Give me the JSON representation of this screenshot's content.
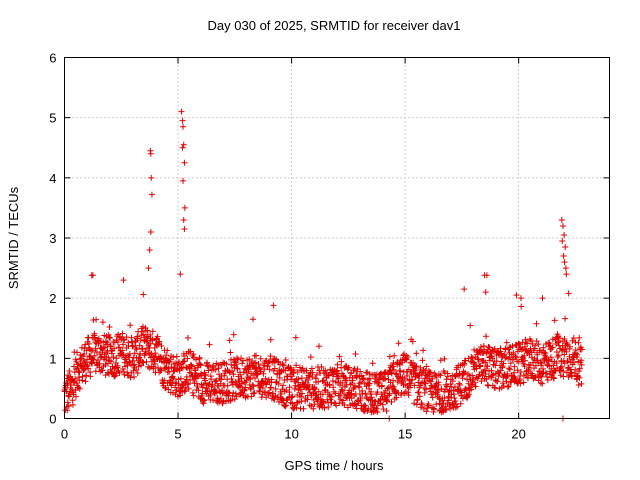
{
  "chart_data": {
    "type": "scatter",
    "title": "Day 030 of 2025, SRMTID for receiver dav1",
    "xlabel": "GPS time / hours",
    "ylabel": "SRMTID / TECUs",
    "xlim": [
      0,
      24
    ],
    "ylim": [
      0,
      6
    ],
    "xticks": [
      0,
      5,
      10,
      15,
      20
    ],
    "yticks": [
      0,
      1,
      2,
      3,
      4,
      5,
      6
    ],
    "grid": true,
    "marker": "plus",
    "color": "#e00000",
    "series": [
      {
        "name": "SRMTID",
        "profile_hours": [
          0,
          0.3,
          0.6,
          1.0,
          1.5,
          2.0,
          2.5,
          3.0,
          3.5,
          4.0,
          4.5,
          5.0,
          5.5,
          6.0,
          7.0,
          8.0,
          9.0,
          10.0,
          11.0,
          12.0,
          13.0,
          13.5,
          14.0,
          14.5,
          15.0,
          15.5,
          16.0,
          16.5,
          17.0,
          17.5,
          18.0,
          18.5,
          19.0,
          19.5,
          20.0,
          20.5,
          21.0,
          21.5,
          22.0,
          22.5,
          22.8
        ],
        "profile_level": [
          0.35,
          0.5,
          0.8,
          1.0,
          1.1,
          1.0,
          1.1,
          1.0,
          1.2,
          1.1,
          0.8,
          0.7,
          0.8,
          0.6,
          0.6,
          0.7,
          0.7,
          0.5,
          0.5,
          0.55,
          0.5,
          0.4,
          0.4,
          0.6,
          0.75,
          0.55,
          0.45,
          0.4,
          0.45,
          0.6,
          0.8,
          0.9,
          0.8,
          0.85,
          0.9,
          1.0,
          0.9,
          1.0,
          1.05,
          1.0,
          0.8
        ],
        "noise_amplitude": 0.35,
        "sample_step_hours": 0.012,
        "bursts": [
          {
            "x": 1.2,
            "y": 2.38
          },
          {
            "x": 1.25,
            "y": 2.38
          },
          {
            "x": 2.6,
            "y": 2.3
          },
          {
            "x": 3.78,
            "y": 4.45
          },
          {
            "x": 3.8,
            "y": 4.4
          },
          {
            "x": 3.82,
            "y": 4.0
          },
          {
            "x": 3.85,
            "y": 3.72
          },
          {
            "x": 3.8,
            "y": 3.1
          },
          {
            "x": 3.75,
            "y": 2.8
          },
          {
            "x": 3.7,
            "y": 2.5
          },
          {
            "x": 5.15,
            "y": 5.1
          },
          {
            "x": 5.2,
            "y": 4.95
          },
          {
            "x": 5.22,
            "y": 4.85
          },
          {
            "x": 5.25,
            "y": 4.55
          },
          {
            "x": 5.2,
            "y": 4.5
          },
          {
            "x": 5.28,
            "y": 4.25
          },
          {
            "x": 5.22,
            "y": 3.95
          },
          {
            "x": 5.3,
            "y": 3.5
          },
          {
            "x": 5.25,
            "y": 3.3
          },
          {
            "x": 5.28,
            "y": 3.15
          },
          {
            "x": 5.1,
            "y": 2.4
          },
          {
            "x": 8.3,
            "y": 1.65
          },
          {
            "x": 9.2,
            "y": 1.88
          },
          {
            "x": 17.6,
            "y": 2.15
          },
          {
            "x": 18.5,
            "y": 2.38
          },
          {
            "x": 18.6,
            "y": 2.38
          },
          {
            "x": 18.55,
            "y": 2.1
          },
          {
            "x": 19.9,
            "y": 2.05
          },
          {
            "x": 20.1,
            "y": 2.0
          },
          {
            "x": 21.05,
            "y": 2.0
          },
          {
            "x": 21.9,
            "y": 3.3
          },
          {
            "x": 21.95,
            "y": 3.2
          },
          {
            "x": 22.0,
            "y": 3.05
          },
          {
            "x": 21.92,
            "y": 2.95
          },
          {
            "x": 22.05,
            "y": 2.85
          },
          {
            "x": 21.98,
            "y": 2.7
          },
          {
            "x": 22.02,
            "y": 2.6
          },
          {
            "x": 22.08,
            "y": 2.5
          },
          {
            "x": 22.1,
            "y": 2.4
          },
          {
            "x": 22.2,
            "y": 2.08
          }
        ],
        "zero_points": [
          {
            "x": 14.3,
            "y": 0.0
          },
          {
            "x": 21.95,
            "y": 0.0
          }
        ]
      }
    ]
  }
}
